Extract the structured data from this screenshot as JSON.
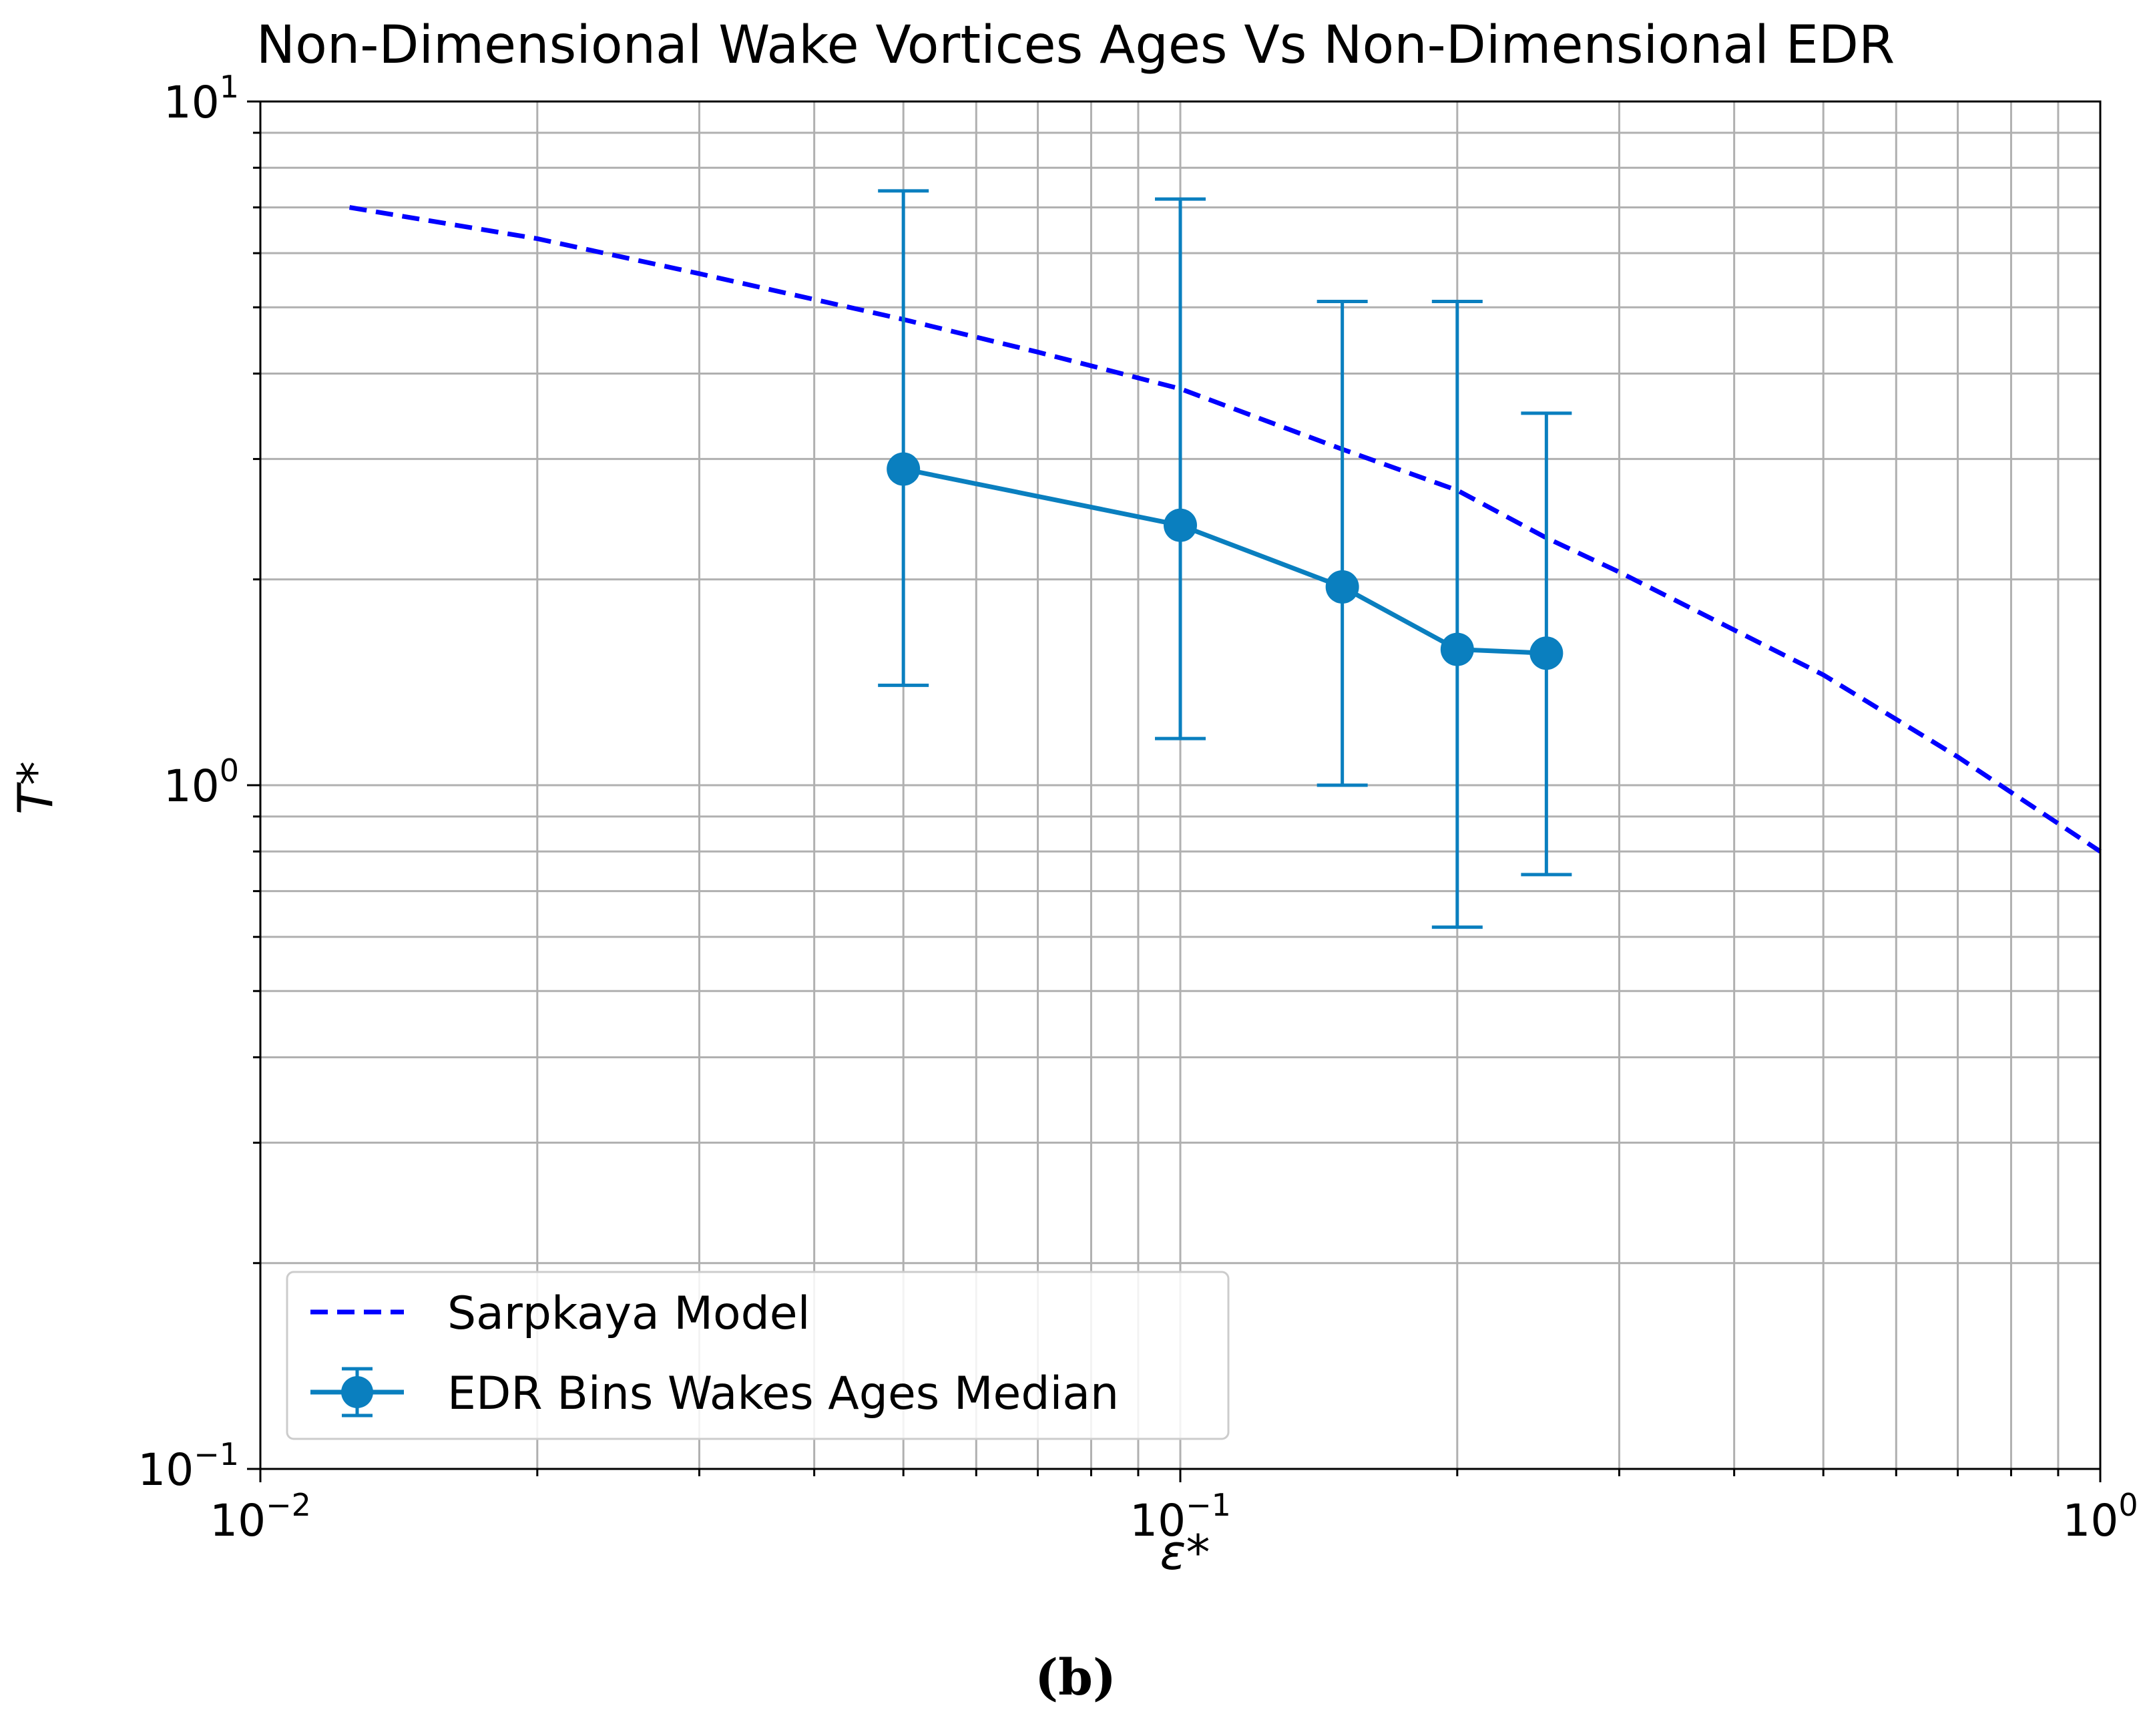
{
  "chart_data": {
    "type": "line",
    "title": "Non-Dimensional Wake Vortices Ages Vs Non-Dimensional EDR",
    "xlabel": "ε*",
    "ylabel": "T*",
    "xscale": "log",
    "yscale": "log",
    "xlim": [
      0.01,
      1
    ],
    "ylim": [
      0.1,
      10
    ],
    "grid": true,
    "x_tick_labels": [
      {
        "value": 0.01,
        "base": "10",
        "exp": "−2"
      },
      {
        "value": 0.1,
        "base": "10",
        "exp": "−1"
      },
      {
        "value": 1,
        "base": "10",
        "exp": "0"
      }
    ],
    "y_tick_labels": [
      {
        "value": 0.1,
        "base": "10",
        "exp": "−1"
      },
      {
        "value": 1,
        "base": "10",
        "exp": "0"
      },
      {
        "value": 10,
        "base": "10",
        "exp": "1"
      }
    ],
    "legend": {
      "position": "lower-left",
      "entries": [
        "Sarpkaya Model",
        "EDR Bins Wakes Ages Median"
      ]
    },
    "series": [
      {
        "name": "Sarpkaya Model",
        "style": "dashed",
        "color": "#0000ff",
        "x": [
          0.0125,
          0.02,
          0.03,
          0.05,
          0.07,
          0.1,
          0.15,
          0.2,
          0.25,
          0.3,
          0.5,
          0.7,
          1.0
        ],
        "y": [
          7.0,
          6.3,
          5.6,
          4.8,
          4.3,
          3.8,
          3.1,
          2.7,
          2.3,
          2.05,
          1.45,
          1.1,
          0.8
        ]
      },
      {
        "name": "EDR Bins Wakes Ages Median",
        "style": "solid-markers-errorbars",
        "color": "#0a7fbf",
        "x": [
          0.05,
          0.1,
          0.15,
          0.2,
          0.25
        ],
        "y": [
          2.9,
          2.4,
          1.95,
          1.58,
          1.56
        ],
        "yerr_low": [
          1.4,
          1.17,
          1.0,
          0.62,
          0.74
        ],
        "yerr_high": [
          7.4,
          7.2,
          5.1,
          5.1,
          3.5
        ]
      }
    ]
  },
  "panel_label": "(b)"
}
